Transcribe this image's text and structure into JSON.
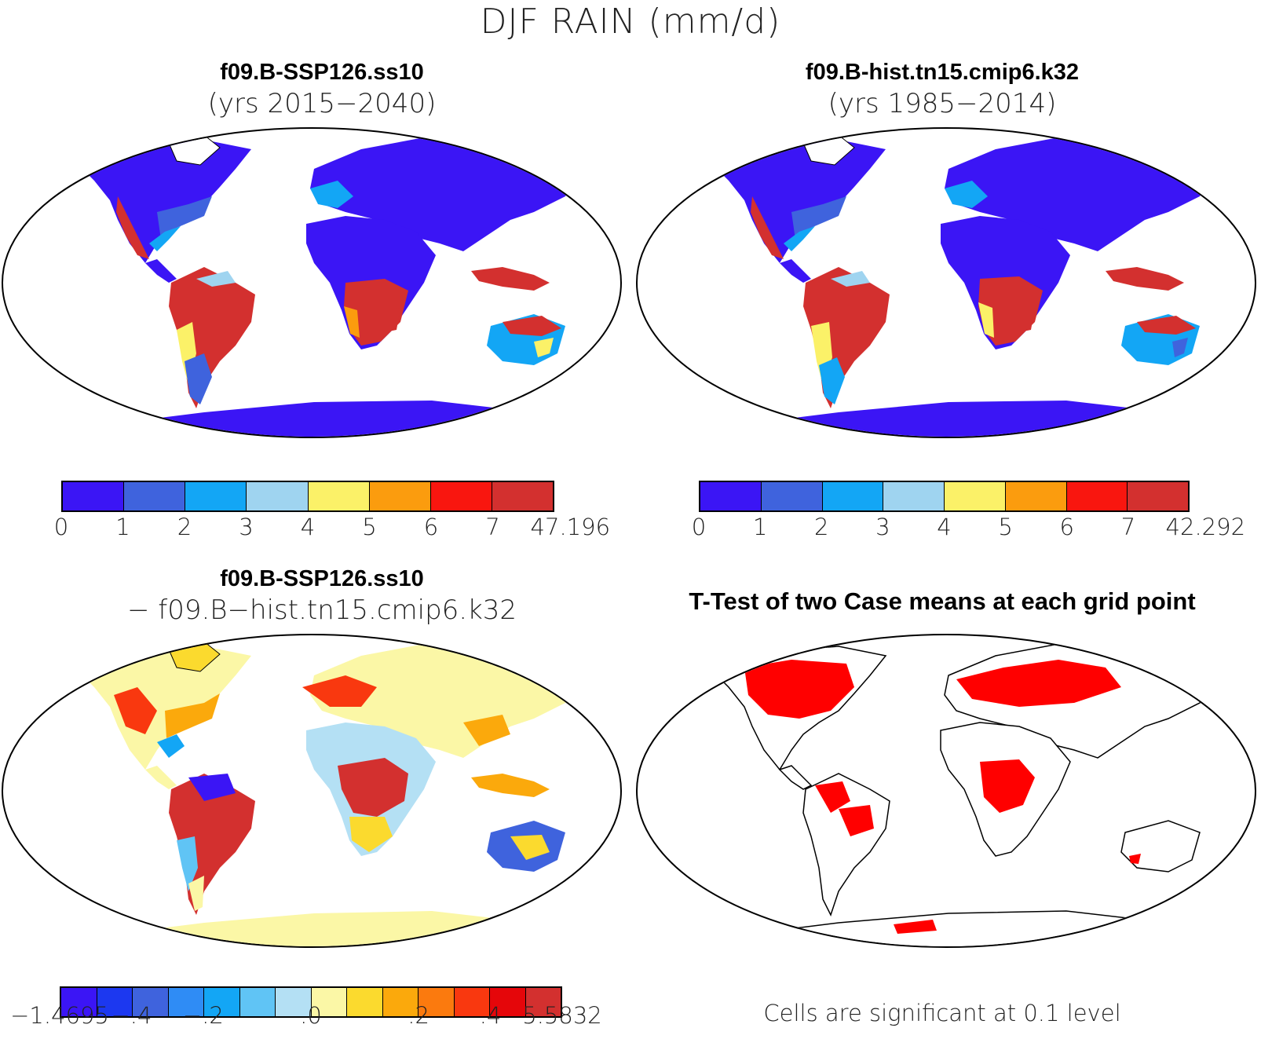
{
  "figure_title": "DJF RAIN (mm/d)",
  "panels": [
    {
      "title": "f09.B-SSP126.ss10",
      "subtitle": "(yrs 2015−2040)",
      "colorbar": {
        "colors": [
          "#3b15f5",
          "#3f63dd",
          "#13a6f5",
          "#9fd4f0",
          "#fbf168",
          "#fb9c0e",
          "#f9160f",
          "#d3302f"
        ],
        "labels": [
          "0",
          "1",
          "2",
          "3",
          "4",
          "5",
          "6",
          "7",
          "47.196"
        ]
      }
    },
    {
      "title": "f09.B-hist.tn15.cmip6.k32",
      "subtitle": "(yrs 1985−2014)",
      "colorbar": {
        "colors": [
          "#3b15f5",
          "#3f63dd",
          "#13a6f5",
          "#9fd4f0",
          "#fbf168",
          "#fb9c0e",
          "#f9160f",
          "#d3302f"
        ],
        "labels": [
          "0",
          "1",
          "2",
          "3",
          "4",
          "5",
          "6",
          "7",
          "42.292"
        ]
      }
    },
    {
      "title": "f09.B-SSP126.ss10",
      "subtitle": "− f09.B−hist.tn15.cmip6.k32",
      "colorbar": {
        "colors": [
          "#3b15f5",
          "#1c38f0",
          "#3f63dd",
          "#2f8cf5",
          "#13a6f5",
          "#60c4f5",
          "#b4e0f4",
          "#fbf7a6",
          "#fbda2e",
          "#fba90c",
          "#fb7a0e",
          "#f9380f",
          "#e5060a",
          "#d3302f"
        ],
        "labels": [
          "−1.4695",
          "−.4",
          "−.2",
          ".0",
          ".2",
          ".4",
          "5.5832"
        ]
      }
    },
    {
      "title": "T-Test of two Case means at each grid point",
      "note": "Cells are significant at 0.1 level",
      "sig_color": "#ff0000"
    }
  ]
}
